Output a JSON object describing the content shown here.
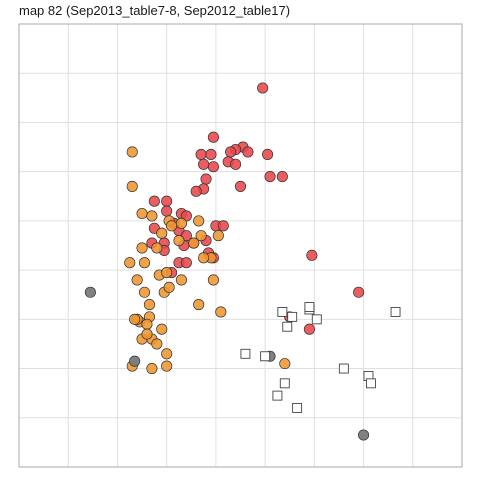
{
  "title": "map 82 (Sep2013_table7-8, Sep2012_table17)",
  "colors": {
    "red": "#e8474b",
    "orange": "#f0962f",
    "grey": "#7a7a7a",
    "outline": "#333333",
    "grid": "#e0e0e0",
    "frame": "#aaaaaa"
  },
  "chart_data": {
    "type": "scatter",
    "title": "map 82 (Sep2013_table7-8, Sep2012_table17)",
    "xlabel": "",
    "ylabel": "",
    "xlim": [
      0,
      18
    ],
    "ylim": [
      0,
      18
    ],
    "grid": true,
    "legend": "none",
    "series": [
      {
        "marker": "circle",
        "color": "red",
        "points": [
          [
            9.9,
            15.4
          ],
          [
            7.9,
            13.4
          ],
          [
            9.1,
            13.0
          ],
          [
            8.8,
            12.9
          ],
          [
            8.6,
            12.8
          ],
          [
            9.3,
            12.8
          ],
          [
            7.4,
            12.7
          ],
          [
            7.8,
            12.7
          ],
          [
            10.1,
            12.7
          ],
          [
            8.5,
            12.4
          ],
          [
            7.5,
            12.3
          ],
          [
            7.9,
            12.2
          ],
          [
            8.8,
            12.3
          ],
          [
            10.7,
            11.8
          ],
          [
            7.6,
            11.7
          ],
          [
            10.2,
            11.8
          ],
          [
            7.5,
            11.3
          ],
          [
            7.2,
            11.2
          ],
          [
            9.0,
            11.4
          ],
          [
            5.5,
            10.8
          ],
          [
            6.0,
            10.8
          ],
          [
            6.0,
            10.4
          ],
          [
            6.6,
            10.3
          ],
          [
            6.3,
            9.9
          ],
          [
            6.8,
            10.2
          ],
          [
            6.5,
            9.6
          ],
          [
            6.8,
            9.4
          ],
          [
            8.0,
            9.8
          ],
          [
            8.3,
            9.8
          ],
          [
            5.5,
            9.7
          ],
          [
            6.7,
            9.0
          ],
          [
            7.1,
            9.1
          ],
          [
            5.9,
            9.1
          ],
          [
            5.4,
            9.1
          ],
          [
            5.9,
            8.8
          ],
          [
            7.6,
            9.2
          ],
          [
            7.7,
            8.7
          ],
          [
            7.9,
            8.5
          ],
          [
            6.5,
            8.3
          ],
          [
            6.8,
            8.3
          ],
          [
            6.2,
            7.9
          ],
          [
            11.9,
            8.6
          ],
          [
            13.8,
            7.1
          ],
          [
            11.0,
            6.1
          ],
          [
            11.8,
            5.6
          ]
        ]
      },
      {
        "marker": "circle",
        "color": "orange",
        "points": [
          [
            4.6,
            12.8
          ],
          [
            4.6,
            11.4
          ],
          [
            5.0,
            10.3
          ],
          [
            5.4,
            10.2
          ],
          [
            6.1,
            10.0
          ],
          [
            7.3,
            10.0
          ],
          [
            6.6,
            9.9
          ],
          [
            6.2,
            9.8
          ],
          [
            5.8,
            9.5
          ],
          [
            7.4,
            9.4
          ],
          [
            8.1,
            9.4
          ],
          [
            6.5,
            9.2
          ],
          [
            7.1,
            9.1
          ],
          [
            5.6,
            8.9
          ],
          [
            5.0,
            8.9
          ],
          [
            7.8,
            8.5
          ],
          [
            7.5,
            8.5
          ],
          [
            5.1,
            8.3
          ],
          [
            4.5,
            8.3
          ],
          [
            5.7,
            7.8
          ],
          [
            6.0,
            7.9
          ],
          [
            4.8,
            7.6
          ],
          [
            6.6,
            7.6
          ],
          [
            7.9,
            7.6
          ],
          [
            5.1,
            7.1
          ],
          [
            5.9,
            7.1
          ],
          [
            6.1,
            7.3
          ],
          [
            5.3,
            6.6
          ],
          [
            7.3,
            6.6
          ],
          [
            8.2,
            6.3
          ],
          [
            5.3,
            6.1
          ],
          [
            5.8,
            5.6
          ],
          [
            4.9,
            5.9
          ],
          [
            4.8,
            6.0
          ],
          [
            5.2,
            5.8
          ],
          [
            5.0,
            5.2
          ],
          [
            5.4,
            5.2
          ],
          [
            5.6,
            5.0
          ],
          [
            6.0,
            4.1
          ],
          [
            4.6,
            4.1
          ],
          [
            5.4,
            4.0
          ],
          [
            6.0,
            4.6
          ],
          [
            10.8,
            4.2
          ],
          [
            5.2,
            5.4
          ],
          [
            4.7,
            6.0
          ]
        ]
      },
      {
        "marker": "circle",
        "color": "grey",
        "points": [
          [
            2.9,
            7.1
          ],
          [
            4.7,
            4.3
          ],
          [
            10.2,
            4.5
          ],
          [
            14.0,
            1.3
          ]
        ]
      },
      {
        "marker": "square",
        "color": "none",
        "points": [
          [
            10.7,
            6.3
          ],
          [
            10.9,
            5.7
          ],
          [
            11.1,
            6.1
          ],
          [
            11.8,
            6.4
          ],
          [
            11.8,
            6.5
          ],
          [
            12.1,
            6.0
          ],
          [
            15.3,
            6.3
          ],
          [
            9.2,
            4.6
          ],
          [
            10.0,
            4.5
          ],
          [
            13.2,
            4.0
          ],
          [
            14.2,
            3.7
          ],
          [
            14.3,
            3.4
          ],
          [
            10.8,
            3.4
          ],
          [
            10.5,
            2.9
          ],
          [
            11.3,
            2.4
          ]
        ]
      }
    ]
  }
}
